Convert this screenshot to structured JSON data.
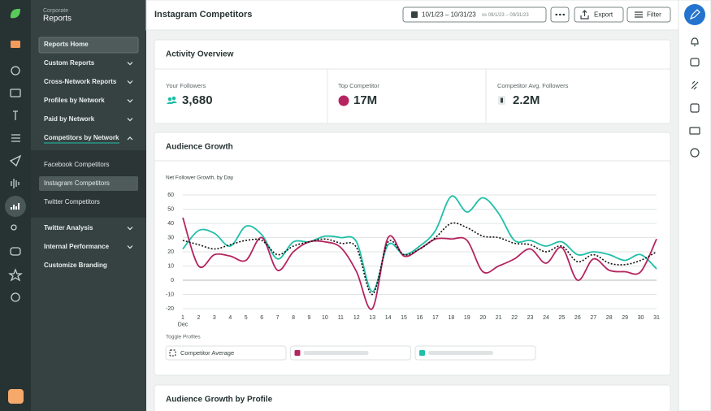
{
  "sidebar": {
    "eyebrow": "Corporate",
    "title": "Reports",
    "items": [
      "Reports Home",
      "Custom Reports",
      "Cross-Network Reports",
      "Profiles by Network",
      "Paid by Network",
      "Competitors by Network"
    ],
    "sub_items": [
      "Facebook Competitors",
      "Instagram Competitors",
      "Twitter Competitors"
    ],
    "more_items": [
      "Twitter Analysis",
      "Internal Performance",
      "Customize Branding"
    ]
  },
  "header": {
    "title": "Instagram Competitors",
    "date_range": "10/1/23 – 10/31/23",
    "compare": "vs 09/1/23 – 09/31/23",
    "export": "Export",
    "filter": "Filter"
  },
  "overview": {
    "title": "Activity Overview",
    "stats": [
      {
        "label": "Your Followers",
        "value": "3,680"
      },
      {
        "label": "Top Competitor",
        "value": "17M"
      },
      {
        "label": "Competitor Avg. Followers",
        "value": "2.2M"
      }
    ]
  },
  "chart_data": {
    "type": "line",
    "title": "Audience Growth",
    "subtitle": "Net Follower Growth, by Day",
    "x": [
      1,
      2,
      3,
      4,
      5,
      6,
      7,
      8,
      9,
      10,
      11,
      12,
      13,
      14,
      15,
      16,
      17,
      18,
      19,
      20,
      21,
      22,
      23,
      24,
      25,
      26,
      27,
      28,
      29,
      30,
      31
    ],
    "x_sub_label": "Dec",
    "xlim": [
      1,
      31
    ],
    "ylim": [
      -20,
      60
    ],
    "yticks": [
      -20,
      -10,
      0,
      10,
      20,
      30,
      40,
      50,
      60
    ],
    "grid": true,
    "toggle_label": "Toggle Profiles",
    "series": [
      {
        "color": "#1fbfa8",
        "values": [
          22,
          35,
          33,
          24,
          38,
          32,
          15,
          27,
          27,
          31,
          30,
          27,
          -8,
          25,
          18,
          24,
          35,
          59,
          48,
          58,
          47,
          28,
          28,
          24,
          27,
          18,
          20,
          18,
          14,
          18,
          8
        ]
      },
      {
        "color": "#b5245f",
        "values": [
          44,
          10,
          18,
          17,
          14,
          30,
          7,
          20,
          27,
          27,
          23,
          6,
          -20,
          30,
          17,
          22,
          29,
          29,
          28,
          6,
          10,
          15,
          22,
          12,
          23,
          0,
          15,
          7,
          6,
          6,
          29
        ]
      },
      {
        "name": "Competitor Average",
        "color": "#111111",
        "dashed": true,
        "values": [
          28,
          25,
          22,
          25,
          28,
          28,
          18,
          24,
          27,
          29,
          26,
          23,
          -10,
          27,
          18,
          22,
          30,
          40,
          37,
          31,
          30,
          26,
          25,
          20,
          24,
          13,
          18,
          12,
          11,
          14,
          20
        ]
      }
    ]
  },
  "profile_section": {
    "title": "Audience Growth by Profile"
  }
}
